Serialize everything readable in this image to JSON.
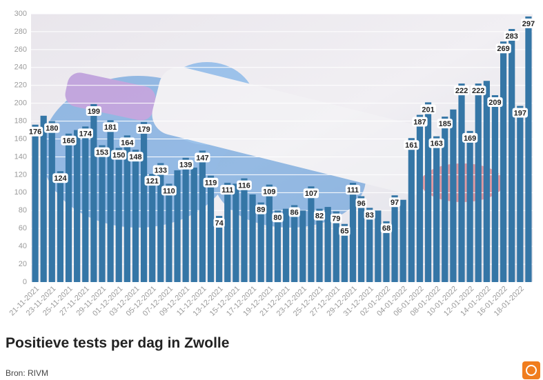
{
  "chart_data": {
    "type": "bar",
    "title": "Positieve tests per dag in Zwolle",
    "source": "Bron: RIVM",
    "color": "#3576a6",
    "categories": [
      "21-11-2021",
      null,
      "23-11-2021",
      null,
      "25-11-2021",
      null,
      "27-11-2021",
      null,
      "29-11-2021",
      null,
      "01-12-2021",
      null,
      "03-12-2021",
      null,
      "05-12-2021",
      null,
      "07-12-2021",
      null,
      "09-12-2021",
      null,
      "11-12-2021",
      null,
      "13-12-2021",
      null,
      "15-12-2021",
      null,
      "17-12-2021",
      null,
      "19-12-2021",
      null,
      "21-12-2021",
      null,
      "23-12-2021",
      null,
      "25-12-2021",
      null,
      "27-12-2021",
      null,
      "29-12-2021",
      null,
      "31-12-2021",
      null,
      "02-01-2022",
      null,
      "04-01-2022",
      null,
      "06-01-2022",
      null,
      "08-01-2022",
      null,
      "10-01-2022",
      null,
      "12-01-2022",
      null,
      "14-01-2022",
      null,
      "16-01-2022",
      null,
      "18-01-2022",
      null
    ],
    "values": [
      176,
      186,
      180,
      124,
      166,
      170,
      174,
      199,
      153,
      181,
      150,
      164,
      148,
      179,
      121,
      133,
      110,
      125,
      139,
      128,
      147,
      119,
      74,
      111,
      110,
      116,
      98,
      89,
      109,
      80,
      82,
      86,
      80,
      107,
      82,
      84,
      79,
      65,
      111,
      96,
      83,
      80,
      68,
      97,
      92,
      161,
      187,
      201,
      163,
      185,
      193,
      222,
      169,
      222,
      225,
      209,
      269,
      283,
      197,
      297
    ],
    "value_labels": [
      "176",
      null,
      "180",
      "124",
      "166",
      null,
      "174",
      "199",
      "153",
      "181",
      "150",
      "164",
      "148",
      "179",
      "121",
      "133",
      "110",
      null,
      "139",
      null,
      "147",
      "119",
      "74",
      "111",
      null,
      "116",
      null,
      "89",
      "109",
      "80",
      null,
      "86",
      null,
      "107",
      "82",
      null,
      "79",
      "65",
      "111",
      "96",
      "83",
      null,
      "68",
      "97",
      null,
      "161",
      "187",
      "201",
      "163",
      "185",
      null,
      "222",
      "169",
      "222",
      null,
      "209",
      "269",
      "283",
      "197",
      "297"
    ],
    "ylim": [
      0,
      300
    ],
    "yticks": [
      0,
      20,
      40,
      60,
      80,
      100,
      120,
      140,
      160,
      180,
      200,
      220,
      240,
      260,
      280,
      300
    ],
    "grid": true
  }
}
